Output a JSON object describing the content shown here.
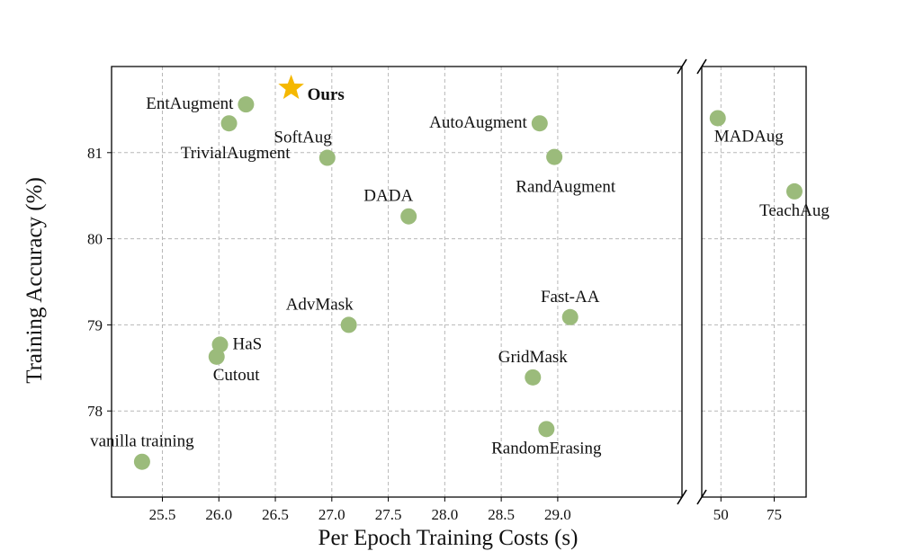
{
  "chart_data": {
    "type": "scatter",
    "xlabel": "Per Epoch Training Costs (s)",
    "ylabel": "Training Accuracy (%)",
    "ylim": [
      77.0,
      82.0
    ],
    "yticks": [
      78,
      79,
      80,
      81
    ],
    "y_tick_labels": [
      "78",
      "79",
      "80",
      "81"
    ],
    "panels": [
      {
        "id": "left",
        "xlim": [
          25.05,
          30.1
        ],
        "xticks": [
          25.5,
          26.0,
          26.5,
          27.0,
          27.5,
          28.0,
          28.5,
          29.0
        ],
        "x_tick_labels": [
          "25.5",
          "26.0",
          "26.5",
          "27.0",
          "27.5",
          "28.0",
          "28.5",
          "29.0"
        ]
      },
      {
        "id": "right",
        "xlim": [
          41,
          90
        ],
        "xticks": [
          50,
          75
        ],
        "x_tick_labels": [
          "50",
          "75"
        ]
      }
    ],
    "marker_color": "#9bbb7b",
    "highlight_color": "#f5b800",
    "points": [
      {
        "name": "vanilla training",
        "x": 25.32,
        "y": 77.41,
        "panel": "left",
        "label_anchor": "above-center"
      },
      {
        "name": "Cutout",
        "x": 25.98,
        "y": 78.63,
        "panel": "left",
        "label_anchor": "below-right"
      },
      {
        "name": "HaS",
        "x": 26.01,
        "y": 78.77,
        "panel": "left",
        "label_anchor": "right"
      },
      {
        "name": "TrivialAugment",
        "x": 26.09,
        "y": 81.34,
        "panel": "left",
        "label_anchor": "below-left"
      },
      {
        "name": "EntAugment",
        "x": 26.24,
        "y": 81.56,
        "panel": "left",
        "label_anchor": "left"
      },
      {
        "name": "Ours",
        "x": 26.64,
        "y": 81.75,
        "panel": "left",
        "label_anchor": "right-bold",
        "highlight": true
      },
      {
        "name": "SoftAug",
        "x": 26.96,
        "y": 80.94,
        "panel": "left",
        "label_anchor": "above-left"
      },
      {
        "name": "AdvMask",
        "x": 27.15,
        "y": 79.0,
        "panel": "left",
        "label_anchor": "above-left"
      },
      {
        "name": "DADA",
        "x": 27.68,
        "y": 80.26,
        "panel": "left",
        "label_anchor": "above-left"
      },
      {
        "name": "AutoAugment",
        "x": 28.84,
        "y": 81.34,
        "panel": "left",
        "label_anchor": "left"
      },
      {
        "name": "RandAugment",
        "x": 28.97,
        "y": 80.95,
        "panel": "left",
        "label_anchor": "below-left"
      },
      {
        "name": "GridMask",
        "x": 28.78,
        "y": 78.39,
        "panel": "left",
        "label_anchor": "above-center"
      },
      {
        "name": "RandomErasing",
        "x": 28.9,
        "y": 77.79,
        "panel": "left",
        "label_anchor": "below-center"
      },
      {
        "name": "Fast-AA",
        "x": 29.11,
        "y": 79.09,
        "panel": "left",
        "label_anchor": "above-center"
      },
      {
        "name": "MADAug",
        "x": 48.5,
        "y": 81.4,
        "panel": "right",
        "label_anchor": "below-right"
      },
      {
        "name": "TeachAug",
        "x": 84.5,
        "y": 80.55,
        "panel": "right",
        "label_anchor": "below-center"
      }
    ]
  }
}
